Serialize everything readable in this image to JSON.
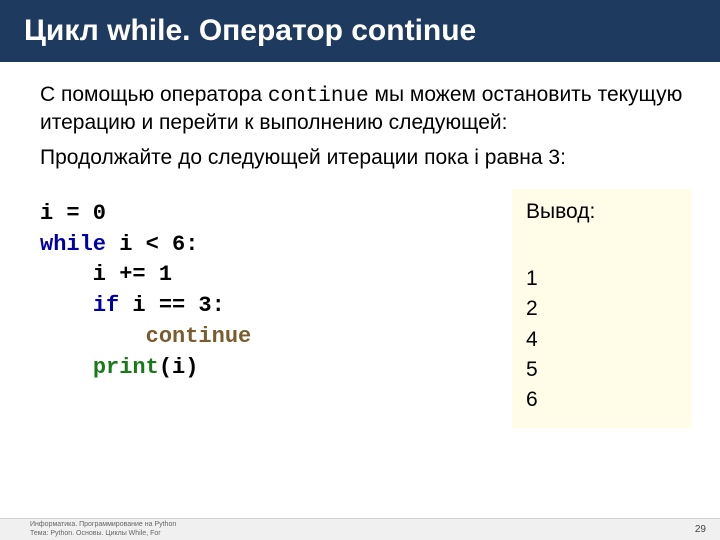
{
  "header": {
    "title": "Цикл while. Оператор continue"
  },
  "body": {
    "p1_a": "С помощью оператора ",
    "p1_kw": "continue",
    "p1_b": " мы можем остановить текущую итерацию и перейти к выполнению следующей:",
    "p2": "Продолжайте до следующей итерации пока i равна 3:"
  },
  "code": {
    "l1": "i = 0",
    "l2a": "while",
    "l2b": " i < 6:",
    "l3": "    i += 1",
    "l4a": "    ",
    "l4b": "if",
    "l4c": " i == 3:",
    "l5a": "        ",
    "l5b": "continue",
    "l6a": "    ",
    "l6b": "print",
    "l6c": "(i)"
  },
  "output": {
    "title": "Вывод:",
    "lines": [
      "1",
      "2",
      "4",
      "5",
      "6"
    ]
  },
  "footer": {
    "line1": "Информатика. Программирование на Python",
    "line2": "Тема: Python. Основы. Циклы While, For",
    "page": "29"
  },
  "colors": {
    "header_bg": "#1f3a5f",
    "output_bg": "#fffde7",
    "kw_blue": "#0000aa",
    "kw_brown": "#7a5c2e",
    "kw_green": "#1a7a1a"
  }
}
